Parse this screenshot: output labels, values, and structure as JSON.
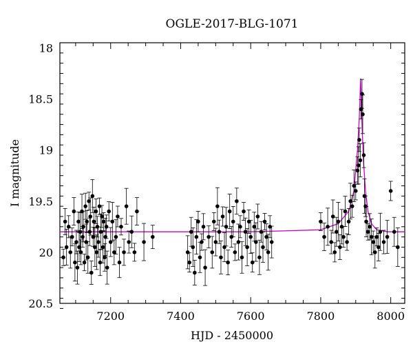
{
  "chart_data": {
    "type": "scatter",
    "title": "OGLE-2017-BLG-1071",
    "xlabel": "HJD - 2450000",
    "ylabel": "I magnitude",
    "xlim": [
      7055,
      8040
    ],
    "ylim": [
      20.5,
      17.95
    ],
    "y_inverted": true,
    "x_ticks": [
      7200,
      7400,
      7600,
      7800,
      8000
    ],
    "x_minor_step": 50,
    "y_ticks": [
      18,
      18.5,
      19,
      19.5,
      20,
      20.5
    ],
    "y_tick_labels": [
      "18",
      "18.5",
      "19",
      "19.5",
      "20",
      "20.5"
    ],
    "y_minor_step": 0.1,
    "grid": false,
    "colors": {
      "data": "#000000",
      "model": "#cc00cc",
      "axes": "#000000"
    },
    "series": [
      {
        "role": "observations",
        "x": [
          7065,
          7070,
          7074,
          7080,
          7085,
          7090,
          7095,
          7098,
          7102,
          7105,
          7108,
          7110,
          7113,
          7115,
          7118,
          7120,
          7122,
          7125,
          7128,
          7130,
          7132,
          7135,
          7138,
          7140,
          7142,
          7145,
          7148,
          7150,
          7152,
          7155,
          7158,
          7160,
          7162,
          7165,
          7168,
          7170,
          7172,
          7175,
          7178,
          7180,
          7183,
          7185,
          7188,
          7190,
          7195,
          7200,
          7205,
          7210,
          7215,
          7220,
          7225,
          7230,
          7238,
          7245,
          7252,
          7260,
          7268,
          7275,
          7295,
          7320,
          7420,
          7425,
          7430,
          7435,
          7440,
          7445,
          7450,
          7455,
          7460,
          7465,
          7470,
          7480,
          7490,
          7495,
          7500,
          7505,
          7510,
          7515,
          7520,
          7525,
          7530,
          7535,
          7540,
          7545,
          7550,
          7555,
          7560,
          7565,
          7570,
          7575,
          7580,
          7585,
          7590,
          7595,
          7600,
          7605,
          7610,
          7615,
          7620,
          7625,
          7630,
          7635,
          7640,
          7645,
          7650,
          7655,
          7660,
          7800,
          7810,
          7820,
          7830,
          7835,
          7840,
          7845,
          7850,
          7855,
          7860,
          7865,
          7870,
          7875,
          7880,
          7885,
          7890,
          7895,
          7900,
          7905,
          7908,
          7910,
          7913,
          7915,
          7918,
          7920,
          7923,
          7925,
          7928,
          7930,
          7935,
          7940,
          7945,
          7950,
          7955,
          7960,
          7965,
          7970,
          7980,
          7990,
          8000,
          8010,
          8020
        ],
        "y": [
          20.05,
          19.7,
          19.95,
          19.75,
          20.0,
          19.85,
          19.6,
          20.1,
          19.9,
          20.15,
          19.7,
          19.95,
          19.8,
          20.0,
          19.6,
          19.85,
          19.75,
          20.1,
          19.55,
          19.9,
          19.7,
          20.05,
          19.5,
          19.8,
          19.65,
          20.2,
          19.45,
          19.85,
          19.7,
          19.95,
          19.6,
          20.0,
          19.75,
          19.9,
          19.55,
          20.1,
          19.8,
          19.65,
          19.95,
          19.7,
          20.05,
          19.85,
          19.75,
          20.15,
          19.6,
          19.9,
          19.7,
          20.0,
          19.85,
          19.65,
          20.1,
          19.75,
          20.0,
          19.55,
          19.9,
          19.8,
          20.0,
          19.6,
          19.9,
          19.85,
          20.0,
          20.1,
          19.8,
          19.95,
          20.2,
          19.85,
          19.7,
          20.05,
          19.9,
          19.75,
          20.15,
          19.85,
          20.0,
          19.7,
          19.9,
          19.55,
          19.8,
          20.05,
          19.65,
          19.95,
          19.75,
          20.1,
          19.6,
          19.85,
          19.7,
          20.0,
          19.5,
          19.9,
          19.75,
          20.05,
          19.6,
          19.8,
          19.95,
          19.7,
          19.85,
          20.1,
          19.75,
          19.9,
          19.65,
          20.05,
          19.8,
          19.95,
          19.7,
          19.85,
          20.0,
          19.75,
          19.9,
          19.7,
          19.85,
          19.75,
          19.9,
          19.65,
          20.0,
          19.8,
          19.7,
          19.95,
          19.75,
          19.85,
          19.6,
          19.9,
          19.7,
          19.5,
          19.55,
          19.35,
          19.4,
          19.2,
          19.15,
          18.9,
          19.1,
          18.6,
          18.45,
          18.65,
          19.05,
          19.45,
          19.55,
          19.7,
          19.8,
          19.75,
          19.85,
          19.9,
          20.0,
          19.85,
          19.95,
          19.8,
          19.9,
          19.85,
          19.4,
          19.8,
          19.95
        ]
      },
      {
        "role": "model",
        "x": [
          7055,
          7600,
          7800,
          7850,
          7880,
          7895,
          7905,
          7910,
          7914,
          7918,
          7922,
          7928,
          7935,
          7945,
          7960,
          7990,
          8040
        ],
        "y": [
          19.8,
          19.8,
          19.78,
          19.72,
          19.6,
          19.4,
          19.0,
          18.7,
          18.3,
          18.75,
          19.1,
          19.4,
          19.6,
          19.72,
          19.78,
          19.8,
          19.8
        ]
      }
    ]
  }
}
